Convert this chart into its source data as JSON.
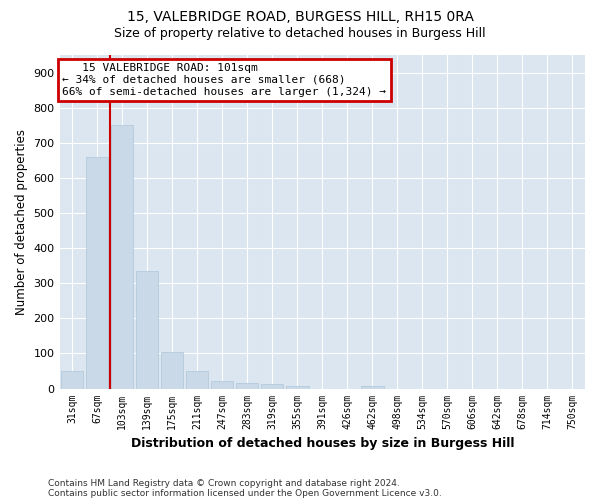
{
  "title1": "15, VALEBRIDGE ROAD, BURGESS HILL, RH15 0RA",
  "title2": "Size of property relative to detached houses in Burgess Hill",
  "xlabel": "Distribution of detached houses by size in Burgess Hill",
  "ylabel": "Number of detached properties",
  "footer1": "Contains HM Land Registry data © Crown copyright and database right 2024.",
  "footer2": "Contains public sector information licensed under the Open Government Licence v3.0.",
  "annotation_line1": "15 VALEBRIDGE ROAD: 101sqm",
  "annotation_line2": "← 34% of detached houses are smaller (668)",
  "annotation_line3": "66% of semi-detached houses are larger (1,324) →",
  "bar_color": "#c9d9e8",
  "bar_edge_color": "#aec6d8",
  "property_line_color": "#cc0000",
  "annotation_box_edgecolor": "#cc0000",
  "fig_background_color": "#ffffff",
  "plot_background_color": "#dce6f0",
  "grid_color": "#ffffff",
  "categories": [
    "31sqm",
    "67sqm",
    "103sqm",
    "139sqm",
    "175sqm",
    "211sqm",
    "247sqm",
    "283sqm",
    "319sqm",
    "355sqm",
    "391sqm",
    "426sqm",
    "462sqm",
    "498sqm",
    "534sqm",
    "570sqm",
    "606sqm",
    "642sqm",
    "678sqm",
    "714sqm",
    "750sqm"
  ],
  "values": [
    50,
    660,
    750,
    335,
    105,
    50,
    22,
    15,
    12,
    8,
    0,
    0,
    8,
    0,
    0,
    0,
    0,
    0,
    0,
    0,
    0
  ],
  "property_line_x": 1.5,
  "ylim": [
    0,
    950
  ],
  "yticks": [
    0,
    100,
    200,
    300,
    400,
    500,
    600,
    700,
    800,
    900
  ]
}
